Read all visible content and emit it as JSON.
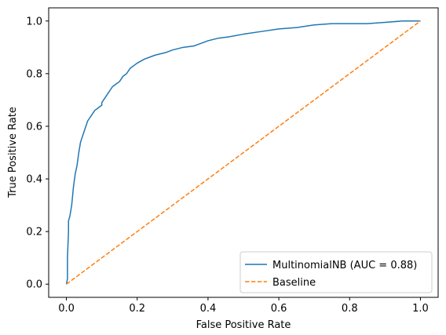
{
  "chart_data": {
    "type": "line",
    "title": "",
    "xlabel": "False Positive Rate",
    "ylabel": "True Positive Rate",
    "xlim": [
      -0.05,
      1.05
    ],
    "ylim": [
      -0.05,
      1.05
    ],
    "xticks": [
      0.0,
      0.2,
      0.4,
      0.6,
      0.8,
      1.0
    ],
    "yticks": [
      0.0,
      0.2,
      0.4,
      0.6,
      0.8,
      1.0
    ],
    "xtick_labels": [
      "0.0",
      "0.2",
      "0.4",
      "0.6",
      "0.8",
      "1.0"
    ],
    "ytick_labels": [
      "0.0",
      "0.2",
      "0.4",
      "0.6",
      "0.8",
      "1.0"
    ],
    "grid": false,
    "legend_position": "lower-right",
    "series": [
      {
        "name": "MultinomialNB (AUC = 0.88)",
        "color": "#1f77b4",
        "style": "solid",
        "x": [
          0.0,
          0.003,
          0.003,
          0.006,
          0.006,
          0.01,
          0.015,
          0.02,
          0.025,
          0.03,
          0.035,
          0.04,
          0.045,
          0.05,
          0.055,
          0.06,
          0.065,
          0.07,
          0.08,
          0.09,
          0.1,
          0.1,
          0.11,
          0.12,
          0.13,
          0.14,
          0.15,
          0.16,
          0.17,
          0.18,
          0.2,
          0.22,
          0.25,
          0.28,
          0.3,
          0.33,
          0.36,
          0.38,
          0.4,
          0.43,
          0.46,
          0.5,
          0.55,
          0.6,
          0.65,
          0.7,
          0.75,
          0.8,
          0.85,
          0.9,
          0.95,
          1.0
        ],
        "y": [
          0.0,
          0.02,
          0.1,
          0.2,
          0.24,
          0.26,
          0.3,
          0.37,
          0.42,
          0.45,
          0.5,
          0.54,
          0.56,
          0.58,
          0.6,
          0.62,
          0.63,
          0.64,
          0.66,
          0.67,
          0.68,
          0.69,
          0.71,
          0.73,
          0.75,
          0.76,
          0.77,
          0.79,
          0.8,
          0.82,
          0.84,
          0.855,
          0.87,
          0.88,
          0.89,
          0.9,
          0.905,
          0.915,
          0.925,
          0.935,
          0.94,
          0.95,
          0.96,
          0.97,
          0.975,
          0.985,
          0.99,
          0.99,
          0.99,
          0.995,
          1.0,
          1.0
        ]
      },
      {
        "name": "Baseline",
        "color": "#ff7f0e",
        "style": "dashed",
        "x": [
          0.0,
          1.0
        ],
        "y": [
          0.0,
          1.0
        ]
      }
    ]
  }
}
